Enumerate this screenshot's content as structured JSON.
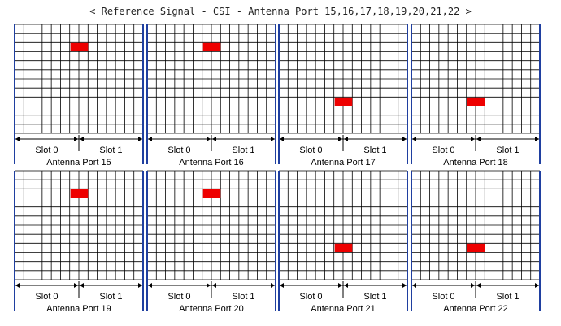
{
  "title": "< Reference Signal - CSI - Antenna Port 15,16,17,18,19,20,21,22 >",
  "colors": {
    "grid_line": "#000000",
    "frame": "#1f3fa0",
    "reference_signal": "#ee0000",
    "text": "#000000"
  },
  "grid": {
    "columns": 14,
    "rows": 12,
    "slot_split_column": 7
  },
  "slot_labels": [
    "Slot 0",
    "Slot 1"
  ],
  "panels": [
    {
      "port_label": "Antenna Port 15",
      "rs_column": 6,
      "rs_row": 2
    },
    {
      "port_label": "Antenna Port 16",
      "rs_column": 6,
      "rs_row": 2
    },
    {
      "port_label": "Antenna Port 17",
      "rs_column": 6,
      "rs_row": 8
    },
    {
      "port_label": "Antenna Port 18",
      "rs_column": 6,
      "rs_row": 8
    },
    {
      "port_label": "Antenna Port 19",
      "rs_column": 6,
      "rs_row": 2
    },
    {
      "port_label": "Antenna Port 20",
      "rs_column": 6,
      "rs_row": 2
    },
    {
      "port_label": "Antenna Port 21",
      "rs_column": 6,
      "rs_row": 8
    },
    {
      "port_label": "Antenna Port 22",
      "rs_column": 6,
      "rs_row": 8
    }
  ]
}
